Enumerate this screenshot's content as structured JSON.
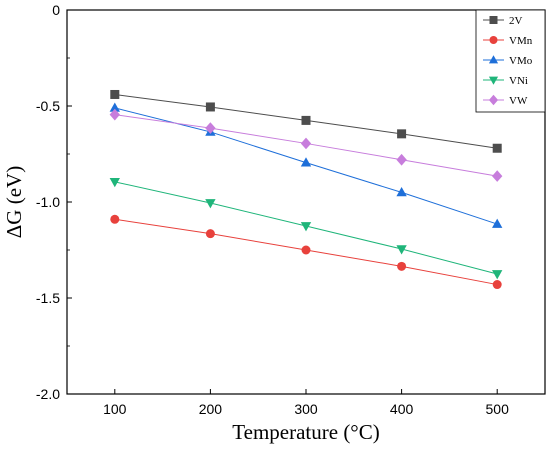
{
  "chart_data": {
    "type": "line",
    "title": "",
    "xlabel": "Temperature (°C)",
    "ylabel": "ΔG (eV)",
    "x": [
      100,
      200,
      300,
      400,
      500
    ],
    "xticks": [
      "100",
      "200",
      "300",
      "400",
      "500"
    ],
    "yticks": [
      "0",
      "-0.5",
      "-1.0",
      "-1.5",
      "-2.0"
    ],
    "xlim": [
      50,
      550
    ],
    "ylim": [
      -2.0,
      0
    ],
    "grid": false,
    "legend_position": "top-right",
    "series": [
      {
        "name": "2V",
        "color": "#4d4d4d",
        "marker": "square",
        "values": [
          -0.44,
          -0.505,
          -0.575,
          -0.645,
          -0.72
        ]
      },
      {
        "name": "VMn",
        "color": "#e8413c",
        "marker": "circle",
        "values": [
          -1.09,
          -1.165,
          -1.25,
          -1.335,
          -1.43
        ]
      },
      {
        "name": "VMo",
        "color": "#1e6fd9",
        "marker": "triangle-up",
        "values": [
          -0.51,
          -0.635,
          -0.795,
          -0.95,
          -1.115
        ]
      },
      {
        "name": "VNi",
        "color": "#1fb57a",
        "marker": "triangle-down",
        "values": [
          -0.895,
          -1.005,
          -1.125,
          -1.245,
          -1.375
        ]
      },
      {
        "name": "VW",
        "color": "#c77ddc",
        "marker": "diamond",
        "values": [
          -0.545,
          -0.615,
          -0.695,
          -0.78,
          -0.865
        ]
      }
    ]
  }
}
